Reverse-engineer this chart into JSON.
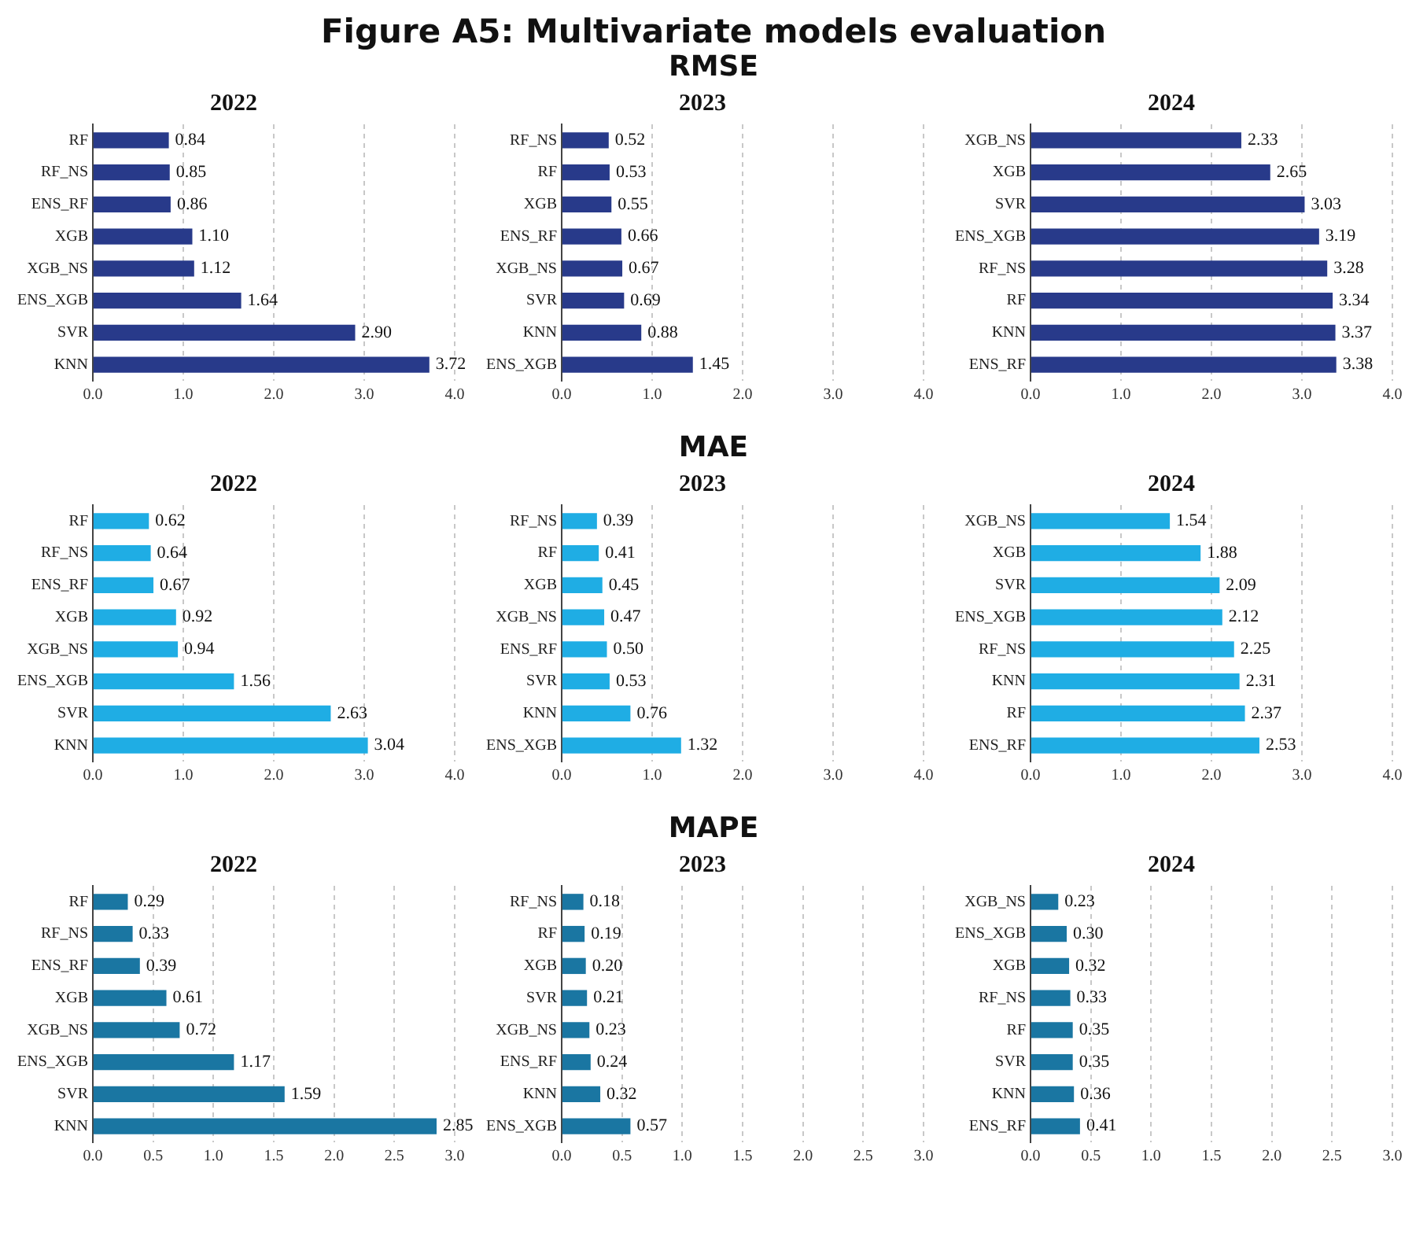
{
  "chart_data": [
    {
      "type": "other",
      "title": "Figure A5: Multivariate models evaluation"
    },
    {
      "type": "bar",
      "orientation": "horizontal",
      "title": "2022",
      "categories": [
        "RF",
        "RF_NS",
        "ENS_RF",
        "XGB",
        "XGB_NS",
        "ENS_XGB",
        "SVR",
        "KNN"
      ],
      "values": [
        0.84,
        0.85,
        0.86,
        1.1,
        1.12,
        1.64,
        2.9,
        3.72
      ],
      "value_labels": [
        "0.84",
        "0.85",
        "0.86",
        "1.10",
        "1.12",
        "1.64",
        "2.90",
        "3.72"
      ],
      "color": "#283a8a",
      "xlim": [
        0,
        4
      ],
      "xticks": [
        {
          "value": 0,
          "label": "0.0"
        },
        {
          "value": 1,
          "label": "1.0"
        },
        {
          "value": 2,
          "label": "2.0"
        },
        {
          "value": 3,
          "label": "3.0"
        },
        {
          "value": 4,
          "label": "4.0"
        }
      ],
      "grid": "x"
    },
    {
      "type": "bar",
      "orientation": "horizontal",
      "title": "2023",
      "subtitle": "RMSE",
      "categories": [
        "RF_NS",
        "RF",
        "XGB",
        "ENS_RF",
        "XGB_NS",
        "SVR",
        "KNN",
        "ENS_XGB"
      ],
      "values": [
        0.52,
        0.53,
        0.55,
        0.66,
        0.67,
        0.69,
        0.88,
        1.45
      ],
      "value_labels": [
        "0.52",
        "0.53",
        "0.55",
        "0.66",
        "0.67",
        "0.69",
        "0.88",
        "1.45"
      ],
      "color": "#283a8a",
      "xlim": [
        0,
        4
      ],
      "xticks": [
        {
          "value": 0,
          "label": "0.0"
        },
        {
          "value": 1,
          "label": "1.0"
        },
        {
          "value": 2,
          "label": "2.0"
        },
        {
          "value": 3,
          "label": "3.0"
        },
        {
          "value": 4,
          "label": "4.0"
        }
      ],
      "grid": "x"
    },
    {
      "type": "bar",
      "orientation": "horizontal",
      "title": "2024",
      "categories": [
        "XGB_NS",
        "XGB",
        "SVR",
        "ENS_XGB",
        "RF_NS",
        "RF",
        "KNN",
        "ENS_RF"
      ],
      "values": [
        2.33,
        2.65,
        3.03,
        3.19,
        3.28,
        3.34,
        3.37,
        3.38
      ],
      "value_labels": [
        "2.33",
        "2.65",
        "3.03",
        "3.19",
        "3.28",
        "3.34",
        "3.37",
        "3.38"
      ],
      "color": "#283a8a",
      "xlim": [
        0,
        4
      ],
      "xticks": [
        {
          "value": 0,
          "label": "0.0"
        },
        {
          "value": 1,
          "label": "1.0"
        },
        {
          "value": 2,
          "label": "2.0"
        },
        {
          "value": 3,
          "label": "3.0"
        },
        {
          "value": 4,
          "label": "4.0"
        }
      ],
      "grid": "x"
    },
    {
      "type": "bar",
      "orientation": "horizontal",
      "title": "2022",
      "categories": [
        "RF",
        "RF_NS",
        "ENS_RF",
        "XGB",
        "XGB_NS",
        "ENS_XGB",
        "SVR",
        "KNN"
      ],
      "values": [
        0.62,
        0.64,
        0.67,
        0.92,
        0.94,
        1.56,
        2.63,
        3.04
      ],
      "value_labels": [
        "0.62",
        "0.64",
        "0.67",
        "0.92",
        "0.94",
        "1.56",
        "2.63",
        "3.04"
      ],
      "color": "#1fade4",
      "xlim": [
        0,
        4
      ],
      "xticks": [
        {
          "value": 0,
          "label": "0.0"
        },
        {
          "value": 1,
          "label": "1.0"
        },
        {
          "value": 2,
          "label": "2.0"
        },
        {
          "value": 3,
          "label": "3.0"
        },
        {
          "value": 4,
          "label": "4.0"
        }
      ],
      "grid": "x"
    },
    {
      "type": "bar",
      "orientation": "horizontal",
      "title": "2023",
      "subtitle": "MAE",
      "categories": [
        "RF_NS",
        "RF",
        "XGB",
        "XGB_NS",
        "ENS_RF",
        "SVR",
        "KNN",
        "ENS_XGB"
      ],
      "values": [
        0.39,
        0.41,
        0.45,
        0.47,
        0.5,
        0.53,
        0.76,
        1.32
      ],
      "value_labels": [
        "0.39",
        "0.41",
        "0.45",
        "0.47",
        "0.50",
        "0.53",
        "0.76",
        "1.32"
      ],
      "color": "#1fade4",
      "xlim": [
        0,
        4
      ],
      "xticks": [
        {
          "value": 0,
          "label": "0.0"
        },
        {
          "value": 1,
          "label": "1.0"
        },
        {
          "value": 2,
          "label": "2.0"
        },
        {
          "value": 3,
          "label": "3.0"
        },
        {
          "value": 4,
          "label": "4.0"
        }
      ],
      "grid": "x"
    },
    {
      "type": "bar",
      "orientation": "horizontal",
      "title": "2024",
      "categories": [
        "XGB_NS",
        "XGB",
        "SVR",
        "ENS_XGB",
        "RF_NS",
        "KNN",
        "RF",
        "ENS_RF"
      ],
      "values": [
        1.54,
        1.88,
        2.09,
        2.12,
        2.25,
        2.31,
        2.37,
        2.53
      ],
      "value_labels": [
        "1.54",
        "1.88",
        "2.09",
        "2.12",
        "2.25",
        "2.31",
        "2.37",
        "2.53"
      ],
      "color": "#1fade4",
      "xlim": [
        0,
        4
      ],
      "xticks": [
        {
          "value": 0,
          "label": "0.0"
        },
        {
          "value": 1,
          "label": "1.0"
        },
        {
          "value": 2,
          "label": "2.0"
        },
        {
          "value": 3,
          "label": "3.0"
        },
        {
          "value": 4,
          "label": "4.0"
        }
      ],
      "grid": "x"
    },
    {
      "type": "bar",
      "orientation": "horizontal",
      "title": "2022",
      "categories": [
        "RF",
        "RF_NS",
        "ENS_RF",
        "XGB",
        "XGB_NS",
        "ENS_XGB",
        "SVR",
        "KNN"
      ],
      "values": [
        0.29,
        0.33,
        0.39,
        0.61,
        0.72,
        1.17,
        1.59,
        2.85
      ],
      "value_labels": [
        "0.29",
        "0.33",
        "0.39",
        "0.61",
        "0.72",
        "1.17",
        "1.59",
        "2.85"
      ],
      "color": "#1a76a2",
      "xlim": [
        0,
        3
      ],
      "xticks": [
        {
          "value": 0,
          "label": "0.0"
        },
        {
          "value": 0.5,
          "label": "0.5"
        },
        {
          "value": 1,
          "label": "1.0"
        },
        {
          "value": 1.5,
          "label": "1.5"
        },
        {
          "value": 2,
          "label": "2.0"
        },
        {
          "value": 2.5,
          "label": "2.5"
        },
        {
          "value": 3,
          "label": "3.0"
        }
      ],
      "grid": "x"
    },
    {
      "type": "bar",
      "orientation": "horizontal",
      "title": "2023",
      "subtitle": "MAPE",
      "categories": [
        "RF_NS",
        "RF",
        "XGB",
        "SVR",
        "XGB_NS",
        "ENS_RF",
        "KNN",
        "ENS_XGB"
      ],
      "values": [
        0.18,
        0.19,
        0.2,
        0.21,
        0.23,
        0.24,
        0.32,
        0.57
      ],
      "value_labels": [
        "0.18",
        "0.19",
        "0.20",
        "0.21",
        "0.23",
        "0.24",
        "0.32",
        "0.57"
      ],
      "color": "#1a76a2",
      "xlim": [
        0,
        3
      ],
      "xticks": [
        {
          "value": 0,
          "label": "0.0"
        },
        {
          "value": 0.5,
          "label": "0.5"
        },
        {
          "value": 1,
          "label": "1.0"
        },
        {
          "value": 1.5,
          "label": "1.5"
        },
        {
          "value": 2,
          "label": "2.0"
        },
        {
          "value": 2.5,
          "label": "2.5"
        },
        {
          "value": 3,
          "label": "3.0"
        }
      ],
      "grid": "x"
    },
    {
      "type": "bar",
      "orientation": "horizontal",
      "title": "2024",
      "categories": [
        "XGB_NS",
        "ENS_XGB",
        "XGB",
        "RF_NS",
        "RF",
        "SVR",
        "KNN",
        "ENS_RF"
      ],
      "values": [
        0.23,
        0.3,
        0.32,
        0.33,
        0.35,
        0.35,
        0.36,
        0.41
      ],
      "value_labels": [
        "0.23",
        "0.30",
        "0.32",
        "0.33",
        "0.35",
        "0.35",
        "0.36",
        "0.41"
      ],
      "color": "#1a76a2",
      "xlim": [
        0,
        3
      ],
      "xticks": [
        {
          "value": 0,
          "label": "0.0"
        },
        {
          "value": 0.5,
          "label": "0.5"
        },
        {
          "value": 1,
          "label": "1.0"
        },
        {
          "value": 1.5,
          "label": "1.5"
        },
        {
          "value": 2,
          "label": "2.0"
        },
        {
          "value": 2.5,
          "label": "2.5"
        },
        {
          "value": 3,
          "label": "3.0"
        }
      ],
      "grid": "x"
    }
  ]
}
